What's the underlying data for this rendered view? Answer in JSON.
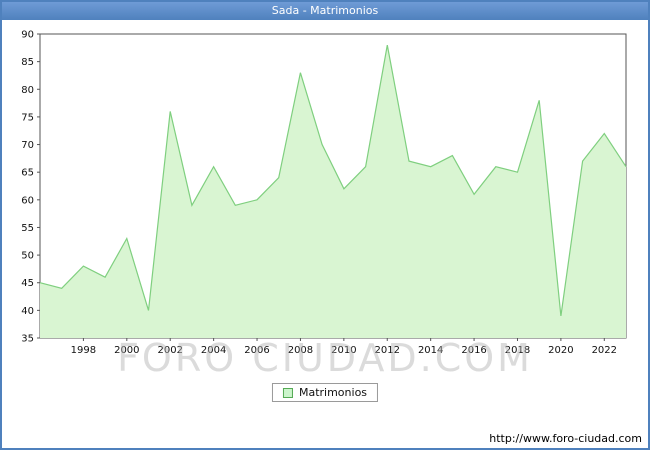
{
  "window": {
    "title": "Sada - Matrimonios"
  },
  "legend": {
    "label": "Matrimonios"
  },
  "footer": {
    "url": "http://www.foro-ciudad.com"
  },
  "watermark": "FORO CIUDAD.COM",
  "colors": {
    "titlebar": "#4f81bd",
    "frame": "#4f81bd",
    "area_fill": "#d9f5d2",
    "line": "#7fcf7f",
    "plot_border": "#555555",
    "tick_text": "#111111"
  },
  "chart_data": {
    "type": "area",
    "title": "Sada - Matrimonios",
    "series_name": "Matrimonios",
    "x": [
      1996,
      1997,
      1998,
      1999,
      2000,
      2001,
      2002,
      2003,
      2004,
      2005,
      2006,
      2007,
      2008,
      2009,
      2010,
      2011,
      2012,
      2013,
      2014,
      2015,
      2016,
      2017,
      2018,
      2019,
      2020,
      2021,
      2022,
      2023
    ],
    "values": [
      45,
      44,
      48,
      46,
      53,
      40,
      76,
      59,
      66,
      59,
      60,
      64,
      83,
      70,
      62,
      66,
      88,
      67,
      66,
      68,
      61,
      66,
      65,
      78,
      39,
      67,
      72,
      66
    ],
    "ylim": [
      35,
      90
    ],
    "ytick_step": 5,
    "xticks": [
      1998,
      2000,
      2002,
      2004,
      2006,
      2008,
      2010,
      2012,
      2014,
      2016,
      2018,
      2020,
      2022
    ],
    "grid": false,
    "legend_position": "bottom-center"
  }
}
